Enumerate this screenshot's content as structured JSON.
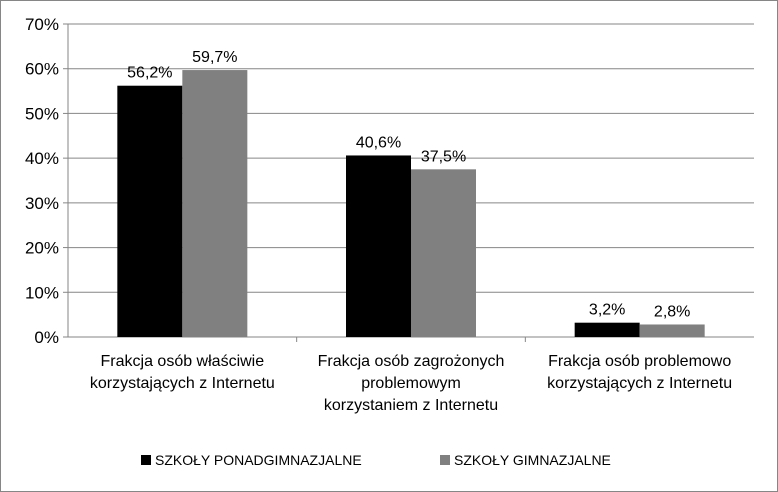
{
  "chart_data": {
    "type": "bar",
    "categories": [
      [
        "Frakcja osób właściwie",
        "korzystających z Internetu"
      ],
      [
        "Frakcja osób zagrożonych",
        "problemowym",
        "korzystaniem z Internetu"
      ],
      [
        "Frakcja osób problemowo",
        "korzystających z Internetu"
      ]
    ],
    "series": [
      {
        "name": "SZKOŁY PONADGIMNAZJALNE",
        "values": [
          56.2,
          40.6,
          3.2
        ],
        "labels": [
          "56,2%",
          "40,6%",
          "3,2%"
        ],
        "color": "#000000"
      },
      {
        "name": "SZKOŁY GIMNAZJALNE",
        "values": [
          59.7,
          37.5,
          2.8
        ],
        "labels": [
          "59,7%",
          "37,5%",
          "2,8%"
        ],
        "color": "#808080"
      }
    ],
    "yticks": [
      "0%",
      "10%",
      "20%",
      "30%",
      "40%",
      "50%",
      "60%",
      "70%"
    ],
    "ylim": [
      0,
      70
    ],
    "grid": true,
    "legend": "bottom"
  }
}
